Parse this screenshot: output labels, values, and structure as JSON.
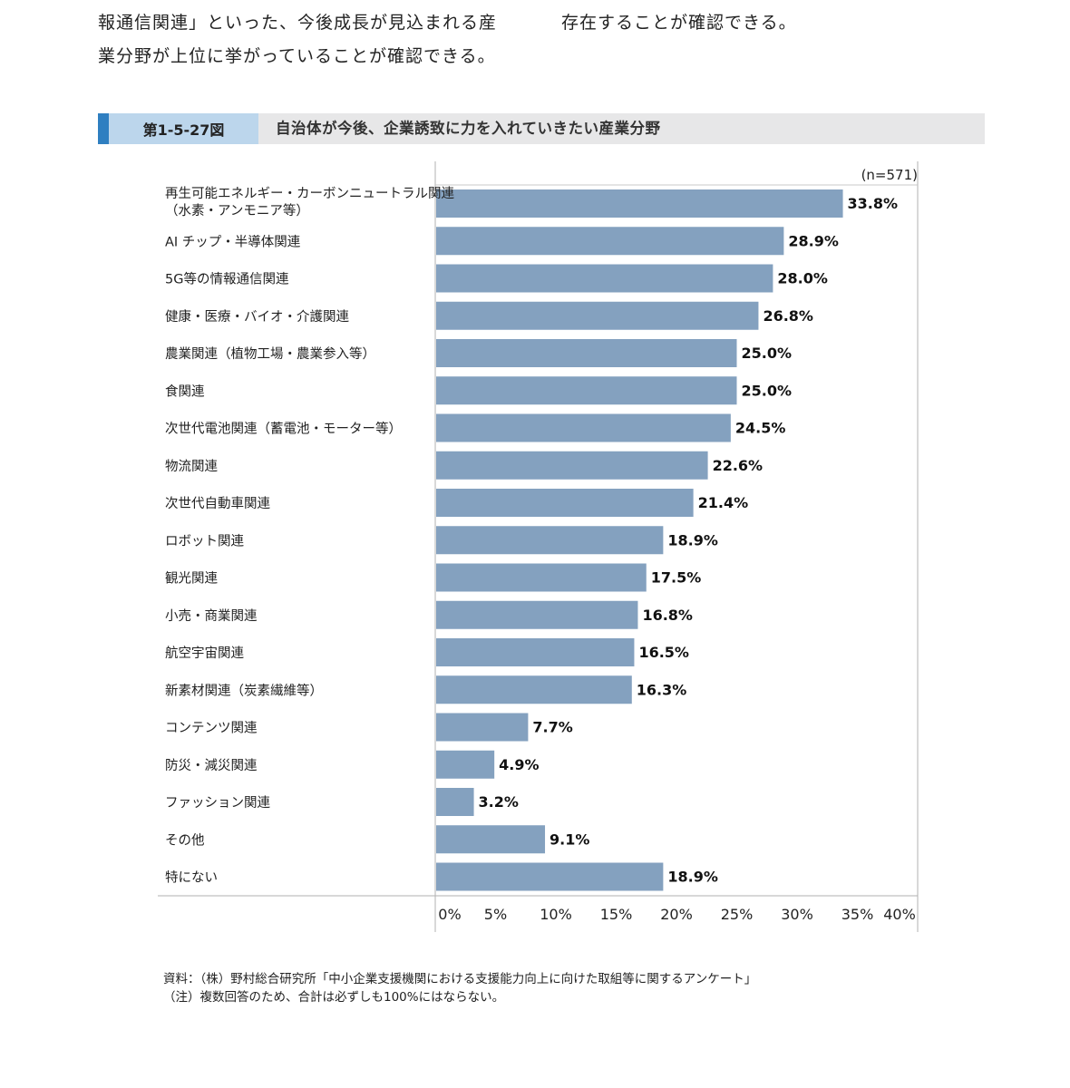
{
  "intro": {
    "line1": "報通信関連」といった、今後成長が見込まれる産",
    "line2": "業分野が上位に挙がっていることが確認できる。",
    "line3": "存在することが確認できる。"
  },
  "figure": {
    "number": "第1-5-27図",
    "title": "自治体が今後、企業誘致に力を入れていきたい産業分野"
  },
  "colors": {
    "bar": "#84a1bf",
    "accent": "#2f7fc1",
    "number_box": "#bcd6ec",
    "header_bg": "#e7e7e8"
  },
  "chart_data": {
    "type": "bar",
    "orientation": "horizontal",
    "sample": "(n=571)",
    "categories": [
      [
        "再生可能エネルギー・カーボンニュートラル関連",
        "（水素・アンモニア等）"
      ],
      [
        "AI チップ・半導体関連"
      ],
      [
        "5G等の情報通信関連"
      ],
      [
        "健康・医療・バイオ・介護関連"
      ],
      [
        "農業関連（植物工場・農業参入等）"
      ],
      [
        "食関連"
      ],
      [
        "次世代電池関連（蓄電池・モーター等）"
      ],
      [
        "物流関連"
      ],
      [
        "次世代自動車関連"
      ],
      [
        "ロボット関連"
      ],
      [
        "観光関連"
      ],
      [
        "小売・商業関連"
      ],
      [
        "航空宇宙関連"
      ],
      [
        "新素材関連（炭素繊維等）"
      ],
      [
        "コンテンツ関連"
      ],
      [
        "防災・減災関連"
      ],
      [
        "ファッション関連"
      ],
      [
        "その他"
      ],
      [
        "特にない"
      ]
    ],
    "values": [
      33.8,
      28.9,
      28.0,
      26.8,
      25.0,
      25.0,
      24.5,
      22.6,
      21.4,
      18.9,
      17.5,
      16.8,
      16.5,
      16.3,
      7.7,
      4.9,
      3.2,
      9.1,
      18.9
    ],
    "value_labels": [
      "33.8%",
      "28.9%",
      "28.0%",
      "26.8%",
      "25.0%",
      "25.0%",
      "24.5%",
      "22.6%",
      "21.4%",
      "18.9%",
      "17.5%",
      "16.8%",
      "16.5%",
      "16.3%",
      "7.7%",
      "4.9%",
      "3.2%",
      "9.1%",
      "18.9%"
    ],
    "xlim": [
      0,
      40
    ],
    "x_ticks": [
      "0%",
      "5%",
      "10%",
      "15%",
      "20%",
      "25%",
      "30%",
      "35%",
      "40%"
    ],
    "grid": false
  },
  "notes": {
    "source": "資料：（株）野村総合研究所「中小企業支援機関における支援能力向上に向けた取組等に関するアンケート」",
    "note": "（注）複数回答のため、合計は必ずしも100%にはならない。"
  }
}
